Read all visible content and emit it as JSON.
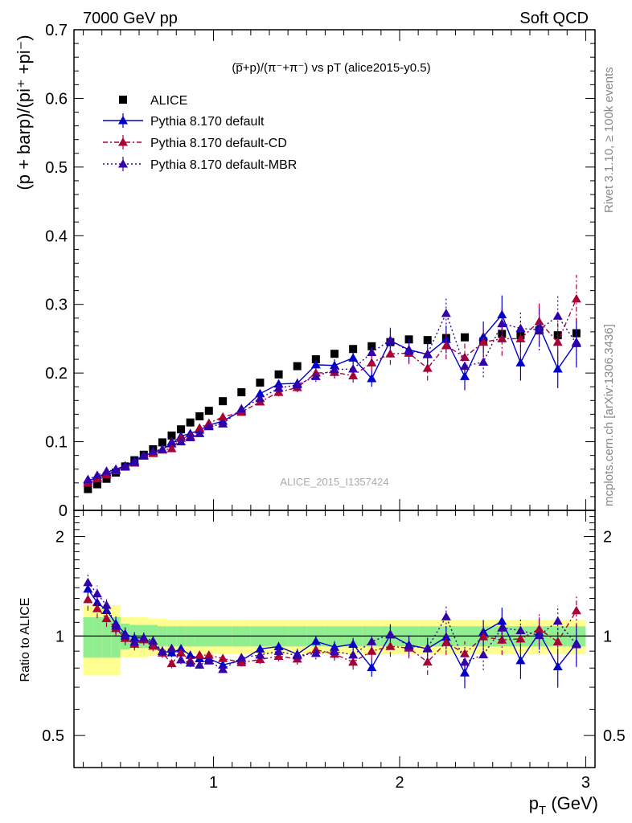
{
  "header": {
    "left": "7000 GeV pp",
    "right": "Soft QCD"
  },
  "side_labels": {
    "rivet": "Rivet 3.1.10, ≥ 100k events",
    "mcplots": "mcplots.cern.ch [arXiv:1306.3436]"
  },
  "colors": {
    "data": "#000000",
    "default": "#0000cc",
    "cd": "#aa0033",
    "mbr": "#3300aa",
    "band_inner": "#90ee90",
    "band_outer": "#ffff90"
  },
  "chart_data": [
    {
      "type": "scatter",
      "panel": "main",
      "title": "(p̅+p)/(π⁻+π⁻) vs pT (alice2015-y0.5)",
      "watermark": "ALICE_2015_I1357424",
      "ylabel": "(p + barp)/(pi⁺ +pi⁻)",
      "xlim": [
        0.25,
        3.05
      ],
      "ylim": [
        0,
        0.7
      ],
      "yticks": [
        "0",
        "0.1",
        "0.2",
        "0.3",
        "0.4",
        "0.5",
        "0.6",
        "0.7"
      ],
      "legend_position": "top-left",
      "x": [
        0.325,
        0.375,
        0.425,
        0.475,
        0.525,
        0.575,
        0.625,
        0.675,
        0.725,
        0.775,
        0.825,
        0.875,
        0.925,
        0.975,
        1.05,
        1.15,
        1.25,
        1.35,
        1.45,
        1.55,
        1.65,
        1.75,
        1.85,
        1.95,
        2.05,
        2.15,
        2.25,
        2.35,
        2.45,
        2.55,
        2.65,
        2.75,
        2.85,
        2.95
      ],
      "series": [
        {
          "name": "ALICE",
          "key": "data",
          "values": [
            0.031,
            0.038,
            0.046,
            0.055,
            0.064,
            0.073,
            0.081,
            0.089,
            0.099,
            0.109,
            0.118,
            0.128,
            0.137,
            0.145,
            0.159,
            0.172,
            0.186,
            0.198,
            0.21,
            0.22,
            0.228,
            0.235,
            0.239,
            0.245,
            0.249,
            0.248,
            0.251,
            0.252,
            0.246,
            0.257,
            0.255,
            0.262,
            0.255,
            0.258
          ]
        },
        {
          "name": "Pythia 8.170 default",
          "key": "default",
          "values": [
            0.043,
            0.048,
            0.055,
            0.06,
            0.065,
            0.072,
            0.08,
            0.084,
            0.089,
            0.097,
            0.108,
            0.112,
            0.117,
            0.124,
            0.13,
            0.145,
            0.17,
            0.184,
            0.185,
            0.212,
            0.211,
            0.222,
            0.192,
            0.247,
            0.234,
            0.227,
            0.249,
            0.195,
            0.253,
            0.285,
            0.215,
            0.268,
            0.206,
            0.245
          ],
          "errors": [
            0.003,
            0.003,
            0.003,
            0.003,
            0.003,
            0.003,
            0.003,
            0.003,
            0.003,
            0.003,
            0.003,
            0.003,
            0.003,
            0.003,
            0.003,
            0.004,
            0.005,
            0.006,
            0.007,
            0.008,
            0.009,
            0.01,
            0.012,
            0.018,
            0.016,
            0.018,
            0.02,
            0.02,
            0.022,
            0.028,
            0.026,
            0.03,
            0.028,
            0.035
          ]
        },
        {
          "name": "Pythia 8.170 default-CD",
          "key": "cd",
          "values": [
            0.04,
            0.046,
            0.052,
            0.058,
            0.063,
            0.069,
            0.079,
            0.083,
            0.088,
            0.09,
            0.105,
            0.108,
            0.12,
            0.127,
            0.136,
            0.143,
            0.158,
            0.172,
            0.179,
            0.2,
            0.201,
            0.196,
            0.215,
            0.228,
            0.229,
            0.207,
            0.24,
            0.223,
            0.245,
            0.25,
            0.25,
            0.275,
            0.245,
            0.308
          ],
          "errors": [
            0.003,
            0.003,
            0.003,
            0.003,
            0.003,
            0.003,
            0.003,
            0.003,
            0.003,
            0.003,
            0.003,
            0.003,
            0.003,
            0.003,
            0.003,
            0.004,
            0.005,
            0.006,
            0.007,
            0.008,
            0.009,
            0.01,
            0.012,
            0.016,
            0.016,
            0.018,
            0.02,
            0.02,
            0.022,
            0.025,
            0.026,
            0.03,
            0.028,
            0.035
          ]
        },
        {
          "name": "Pythia 8.170 default-MBR",
          "key": "mbr",
          "values": [
            0.045,
            0.051,
            0.057,
            0.059,
            0.064,
            0.07,
            0.08,
            0.086,
            0.089,
            0.1,
            0.1,
            0.106,
            0.112,
            0.122,
            0.126,
            0.148,
            0.163,
            0.178,
            0.183,
            0.195,
            0.205,
            0.206,
            0.23,
            0.248,
            0.232,
            0.228,
            0.287,
            0.21,
            0.216,
            0.272,
            0.265,
            0.263,
            0.283,
            0.243
          ],
          "errors": [
            0.003,
            0.003,
            0.003,
            0.003,
            0.003,
            0.003,
            0.003,
            0.003,
            0.003,
            0.003,
            0.003,
            0.003,
            0.003,
            0.003,
            0.003,
            0.004,
            0.005,
            0.006,
            0.007,
            0.008,
            0.009,
            0.01,
            0.012,
            0.018,
            0.016,
            0.018,
            0.022,
            0.02,
            0.022,
            0.026,
            0.026,
            0.03,
            0.032,
            0.035
          ]
        }
      ]
    },
    {
      "type": "scatter",
      "panel": "ratio",
      "ylabel": "Ratio to ALICE",
      "xlabel": "p_T (GeV)",
      "xlabel_main": "p",
      "xlabel_sub": "T",
      "xlabel_unit": " (GeV)",
      "xlim": [
        0.25,
        3.05
      ],
      "ylim": [
        0.4,
        2.4
      ],
      "log_y": true,
      "ytick_labels": [
        {
          "value": 0.5,
          "label": "0.5"
        },
        {
          "value": 1,
          "label": "1"
        },
        {
          "value": 2,
          "label": "2"
        }
      ],
      "xtick_labels": [
        {
          "value": 1,
          "label": "1"
        },
        {
          "value": 2,
          "label": "2"
        },
        {
          "value": 3,
          "label": "3"
        }
      ],
      "band_inner": [
        0.14,
        0.14,
        0.14,
        0.14,
        0.09,
        0.08,
        0.08,
        0.08,
        0.07,
        0.07,
        0.07,
        0.07,
        0.07,
        0.07,
        0.07,
        0.07,
        0.07,
        0.07,
        0.07,
        0.07,
        0.07,
        0.07,
        0.07,
        0.07,
        0.07,
        0.07,
        0.07,
        0.07,
        0.07,
        0.07,
        0.07,
        0.07,
        0.07,
        0.07
      ],
      "band_outer": [
        0.24,
        0.24,
        0.24,
        0.24,
        0.14,
        0.14,
        0.14,
        0.13,
        0.13,
        0.12,
        0.12,
        0.12,
        0.12,
        0.12,
        0.12,
        0.12,
        0.12,
        0.12,
        0.12,
        0.12,
        0.12,
        0.12,
        0.12,
        0.12,
        0.12,
        0.12,
        0.12,
        0.12,
        0.12,
        0.12,
        0.12,
        0.12,
        0.12,
        0.12
      ]
    }
  ]
}
